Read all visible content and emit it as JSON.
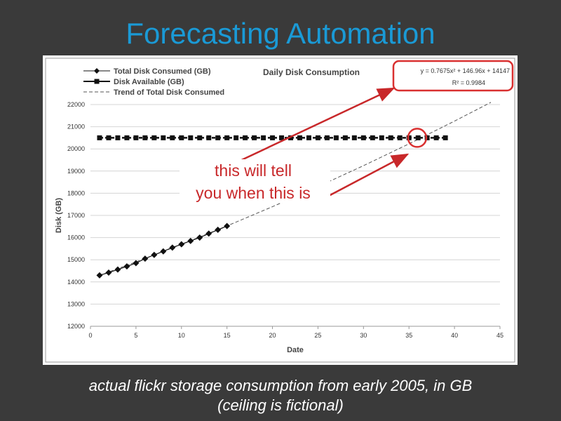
{
  "slide": {
    "title": "Forecasting Automation",
    "caption_line1": "actual flickr storage consumption from early 2005, in GB",
    "caption_line2": "(ceiling is fictional)"
  },
  "colors": {
    "background": "#3a3a3a",
    "title": "#1a9ad6",
    "annotation": "#c8282a",
    "series": "#111111"
  },
  "annotation": {
    "line1": "this will tell",
    "line2": "you when this is"
  },
  "chart_data": {
    "type": "line",
    "title": "Daily Disk Consumption",
    "xlabel": "Date",
    "ylabel": "Disk (GB)",
    "xlim": [
      0,
      45
    ],
    "ylim": [
      12000,
      22000
    ],
    "x_ticks": [
      0,
      5,
      10,
      15,
      20,
      25,
      30,
      35,
      40,
      45
    ],
    "y_ticks": [
      12000,
      13000,
      14000,
      15000,
      16000,
      17000,
      18000,
      19000,
      20000,
      21000,
      22000
    ],
    "grid": "horizontal",
    "legend_position": "top-left",
    "equation": "y = 0.7675x² + 146.96x + 14147",
    "r_squared": "R² = 0.9984",
    "series": [
      {
        "name": "Total Disk Consumed (GB)",
        "marker": "diamond",
        "line": "solid",
        "x": [
          1,
          2,
          3,
          4,
          5,
          6,
          7,
          8,
          9,
          10,
          11,
          12,
          13,
          14,
          15
        ],
        "y": [
          14300,
          14420,
          14560,
          14700,
          14850,
          15050,
          15220,
          15380,
          15550,
          15700,
          15850,
          16000,
          16180,
          16350,
          16520
        ]
      },
      {
        "name": "Disk Available (GB)",
        "marker": "square",
        "line": "dashed",
        "x": [
          1,
          2,
          3,
          4,
          5,
          6,
          7,
          8,
          9,
          10,
          11,
          12,
          13,
          14,
          15,
          16,
          17,
          18,
          19,
          20,
          21,
          22,
          23,
          24,
          25,
          26,
          27,
          28,
          29,
          30,
          31,
          32,
          33,
          34,
          35,
          36,
          37,
          38,
          39
        ],
        "y": [
          20500,
          20500,
          20500,
          20500,
          20500,
          20500,
          20500,
          20500,
          20500,
          20500,
          20500,
          20500,
          20500,
          20500,
          20500,
          20500,
          20500,
          20500,
          20500,
          20500,
          20500,
          20500,
          20500,
          20500,
          20500,
          20500,
          20500,
          20500,
          20500,
          20500,
          20500,
          20500,
          20500,
          20500,
          20500,
          20500,
          20500,
          20500,
          20500
        ]
      },
      {
        "name": "Trend of Total Disk Consumed",
        "marker": "none",
        "line": "dashed",
        "x": [
          1,
          5,
          10,
          15,
          20,
          25,
          30,
          35,
          40,
          44
        ],
        "y": [
          14295,
          14901,
          15694,
          16525,
          17393,
          18299,
          19243,
          20228,
          21253,
          22099
        ]
      }
    ]
  }
}
